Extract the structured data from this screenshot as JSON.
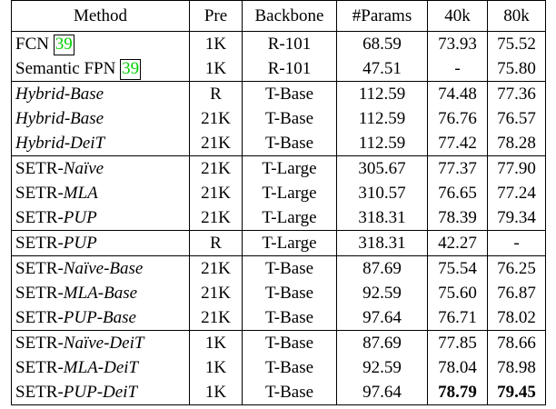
{
  "table": {
    "headers": [
      "Method",
      "Pre",
      "Backbone",
      "#Params",
      "40k",
      "80k"
    ],
    "rows": [
      {
        "prefix": "FCN ",
        "suffix": "",
        "italic": false,
        "cite": "39",
        "pre": "1K",
        "backbone": "R-101",
        "params": "68.59",
        "k40": "73.93",
        "k80": "75.52",
        "bold40": false,
        "bold80": false
      },
      {
        "prefix": "Semantic FPN ",
        "suffix": "",
        "italic": false,
        "cite": "39",
        "pre": "1K",
        "backbone": "R-101",
        "params": "47.51",
        "k40": "-",
        "k80": "75.80",
        "bold40": false,
        "bold80": false
      },
      {
        "prefix": "",
        "suffix": "Hybrid-Base",
        "italic": true,
        "cite": "",
        "pre": "R",
        "backbone": "T-Base",
        "params": "112.59",
        "k40": "74.48",
        "k80": "77.36",
        "bold40": false,
        "bold80": false
      },
      {
        "prefix": "",
        "suffix": "Hybrid-Base",
        "italic": true,
        "cite": "",
        "pre": "21K",
        "backbone": "T-Base",
        "params": "112.59",
        "k40": "76.76",
        "k80": "76.57",
        "bold40": false,
        "bold80": false
      },
      {
        "prefix": "",
        "suffix": "Hybrid-DeiT",
        "italic": true,
        "cite": "",
        "pre": "21K",
        "backbone": "T-Base",
        "params": "112.59",
        "k40": "77.42",
        "k80": "78.28",
        "bold40": false,
        "bold80": false
      },
      {
        "prefix": "SETR-",
        "suffix": "Naïve",
        "italic": true,
        "cite": "",
        "pre": "21K",
        "backbone": "T-Large",
        "params": "305.67",
        "k40": "77.37",
        "k80": "77.90",
        "bold40": false,
        "bold80": false
      },
      {
        "prefix": "SETR-",
        "suffix": "MLA",
        "italic": true,
        "cite": "",
        "pre": "21K",
        "backbone": "T-Large",
        "params": "310.57",
        "k40": "76.65",
        "k80": "77.24",
        "bold40": false,
        "bold80": false
      },
      {
        "prefix": "SETR-",
        "suffix": "PUP",
        "italic": true,
        "cite": "",
        "pre": "21K",
        "backbone": "T-Large",
        "params": "318.31",
        "k40": "78.39",
        "k80": "79.34",
        "bold40": false,
        "bold80": false
      },
      {
        "prefix": "SETR-",
        "suffix": "PUP",
        "italic": true,
        "cite": "",
        "pre": "R",
        "backbone": "T-Large",
        "params": "318.31",
        "k40": "42.27",
        "k80": "-",
        "bold40": false,
        "bold80": false
      },
      {
        "prefix": "SETR-",
        "suffix": "Naïve-Base",
        "italic": true,
        "cite": "",
        "pre": "21K",
        "backbone": "T-Base",
        "params": "87.69",
        "k40": "75.54",
        "k80": "76.25",
        "bold40": false,
        "bold80": false
      },
      {
        "prefix": "SETR-",
        "suffix": "MLA-Base",
        "italic": true,
        "cite": "",
        "pre": "21K",
        "backbone": "T-Base",
        "params": "92.59",
        "k40": "75.60",
        "k80": "76.87",
        "bold40": false,
        "bold80": false
      },
      {
        "prefix": "SETR-",
        "suffix": "PUP-Base",
        "italic": true,
        "cite": "",
        "pre": "21K",
        "backbone": "T-Base",
        "params": "97.64",
        "k40": "76.71",
        "k80": "78.02",
        "bold40": false,
        "bold80": false
      },
      {
        "prefix": "SETR-",
        "suffix": "Naïve-DeiT",
        "italic": true,
        "cite": "",
        "pre": "1K",
        "backbone": "T-Base",
        "params": "87.69",
        "k40": "77.85",
        "k80": "78.66",
        "bold40": false,
        "bold80": false
      },
      {
        "prefix": "SETR-",
        "suffix": "MLA-DeiT",
        "italic": true,
        "cite": "",
        "pre": "1K",
        "backbone": "T-Base",
        "params": "92.59",
        "k40": "78.04",
        "k80": "78.98",
        "bold40": false,
        "bold80": false
      },
      {
        "prefix": "SETR-",
        "suffix": "PUP-DeiT",
        "italic": true,
        "cite": "",
        "pre": "1K",
        "backbone": "T-Base",
        "params": "97.64",
        "k40": "78.79",
        "k80": "79.45",
        "bold40": true,
        "bold80": true
      }
    ]
  }
}
